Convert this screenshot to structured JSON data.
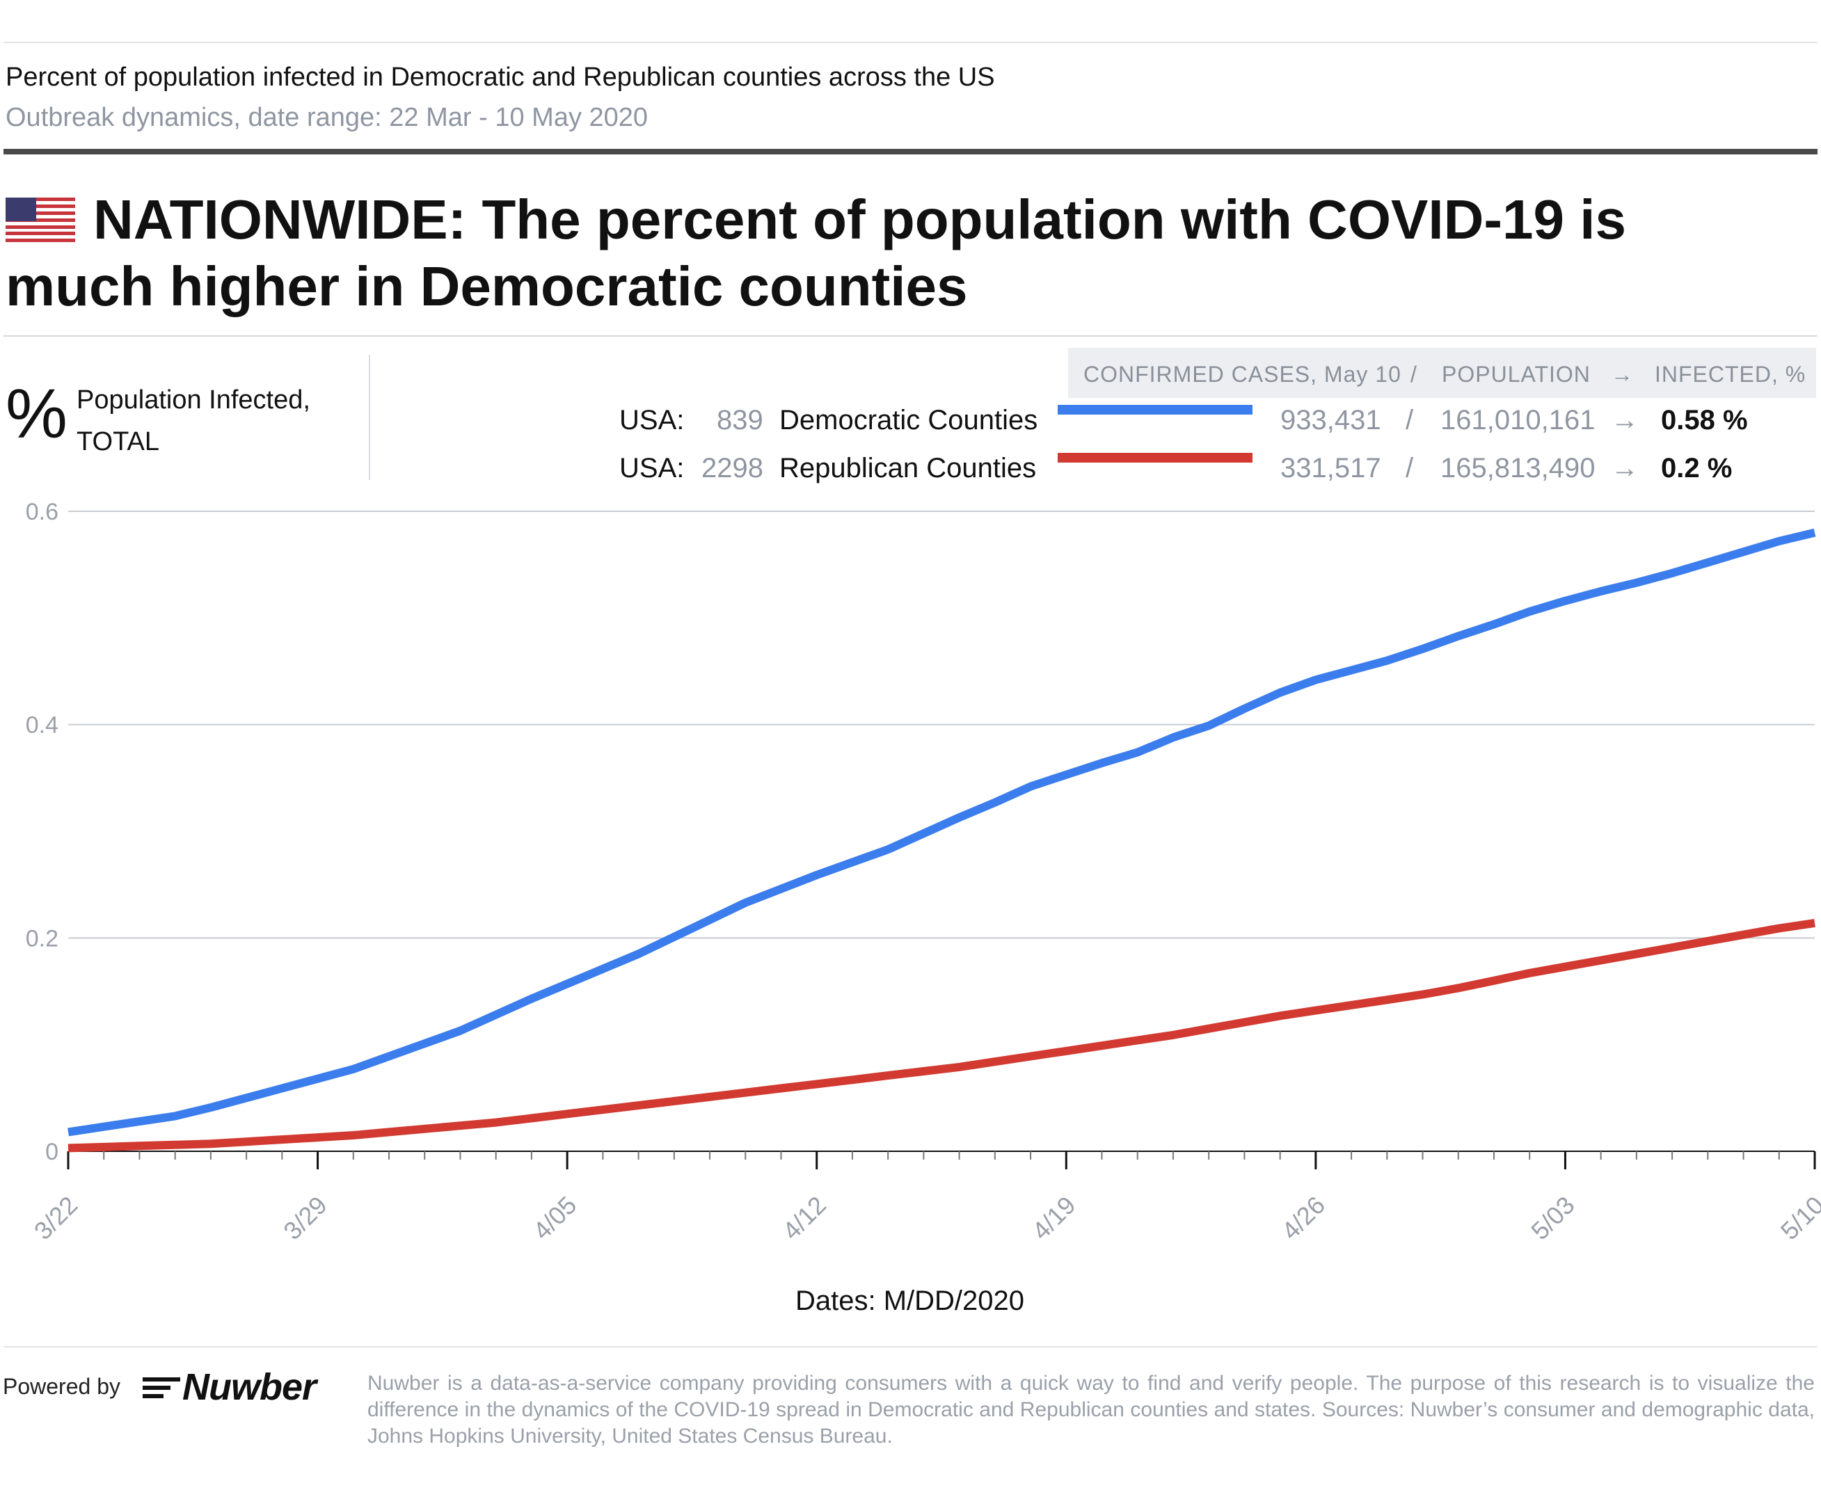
{
  "header": {
    "subtitle": "Percent of population infected in Democratic and Republican counties across the US",
    "date_range": "Outbreak dynamics, date range: 22 Mar - 10 May 2020"
  },
  "headline": "NATIONWIDE: The percent of population with COVID-19 is much higher in Democratic counties",
  "y_unit": {
    "symbol": "%",
    "label": "Population Infected, TOTAL"
  },
  "legend": {
    "header": {
      "cases": "CONFIRMED CASES, May 10",
      "slash": "/",
      "population": "POPULATION",
      "arrow": "→",
      "infected": "INFECTED, %"
    },
    "rows": [
      {
        "region": "USA:",
        "count": "839",
        "name": "Democratic Counties",
        "cases": "933,431",
        "slash": "/",
        "population": "161,010,161",
        "arrow": "→",
        "infected": "0.58 %",
        "color": "#3b7ded"
      },
      {
        "region": "USA:",
        "count": "2298",
        "name": "Republican Counties",
        "cases": "331,517",
        "slash": "/",
        "population": "165,813,490",
        "arrow": "→",
        "infected": "0.2 %",
        "color": "#d23a31"
      }
    ]
  },
  "chart_data": {
    "type": "line",
    "xlabel": "Dates: M/DD/2020",
    "ylabel": "Population Infected, TOTAL",
    "ylim": [
      0,
      0.6
    ],
    "yticks": [
      0,
      0.2,
      0.4,
      0.6
    ],
    "ytick_labels": [
      "0",
      "0.2",
      "0.4",
      "0.6"
    ],
    "xtick_labels": [
      "3/22",
      "3/29",
      "4/05",
      "4/12",
      "4/19",
      "4/26",
      "5/03",
      "5/10"
    ],
    "x": [
      "3/22",
      "3/23",
      "3/24",
      "3/25",
      "3/26",
      "3/27",
      "3/28",
      "3/29",
      "3/30",
      "3/31",
      "4/01",
      "4/02",
      "4/03",
      "4/04",
      "4/05",
      "4/06",
      "4/07",
      "4/08",
      "4/09",
      "4/10",
      "4/11",
      "4/12",
      "4/13",
      "4/14",
      "4/15",
      "4/16",
      "4/17",
      "4/18",
      "4/19",
      "4/20",
      "4/21",
      "4/22",
      "4/23",
      "4/24",
      "4/25",
      "4/26",
      "4/27",
      "4/28",
      "4/29",
      "4/30",
      "5/01",
      "5/02",
      "5/03",
      "5/04",
      "5/05",
      "5/06",
      "5/07",
      "5/08",
      "5/09",
      "5/10"
    ],
    "grid": true,
    "series": [
      {
        "name": "Democratic Counties",
        "color": "#3b7ded",
        "values": [
          0.018,
          0.023,
          0.028,
          0.033,
          0.041,
          0.05,
          0.059,
          0.068,
          0.077,
          0.089,
          0.101,
          0.113,
          0.128,
          0.143,
          0.157,
          0.171,
          0.185,
          0.201,
          0.217,
          0.233,
          0.246,
          0.259,
          0.271,
          0.283,
          0.298,
          0.313,
          0.327,
          0.342,
          0.353,
          0.364,
          0.374,
          0.388,
          0.399,
          0.415,
          0.43,
          0.442,
          0.451,
          0.46,
          0.471,
          0.483,
          0.494,
          0.506,
          0.516,
          0.525,
          0.533,
          0.542,
          0.552,
          0.562,
          0.572,
          0.58
        ]
      },
      {
        "name": "Republican Counties",
        "color": "#d23a31",
        "values": [
          0.003,
          0.004,
          0.005,
          0.006,
          0.007,
          0.009,
          0.011,
          0.013,
          0.015,
          0.018,
          0.021,
          0.024,
          0.027,
          0.031,
          0.035,
          0.039,
          0.043,
          0.047,
          0.051,
          0.055,
          0.059,
          0.063,
          0.067,
          0.071,
          0.075,
          0.079,
          0.084,
          0.089,
          0.094,
          0.099,
          0.104,
          0.109,
          0.115,
          0.121,
          0.127,
          0.132,
          0.137,
          0.142,
          0.147,
          0.153,
          0.16,
          0.167,
          0.173,
          0.179,
          0.185,
          0.191,
          0.197,
          0.203,
          0.209,
          0.214
        ]
      }
    ]
  },
  "footer": {
    "powered_by": "Powered by",
    "logo_text": "Nuwber",
    "note": "Nuwber is a data-as-a-service company providing consumers with a quick way to find and verify people. The purpose of this research is to visualize the difference in the dynamics of the COVID-19 spread in Democratic and Republican counties and states. Sources: Nuwber’s consumer and demographic data, Johns Hopkins University, United States Census Bureau."
  }
}
